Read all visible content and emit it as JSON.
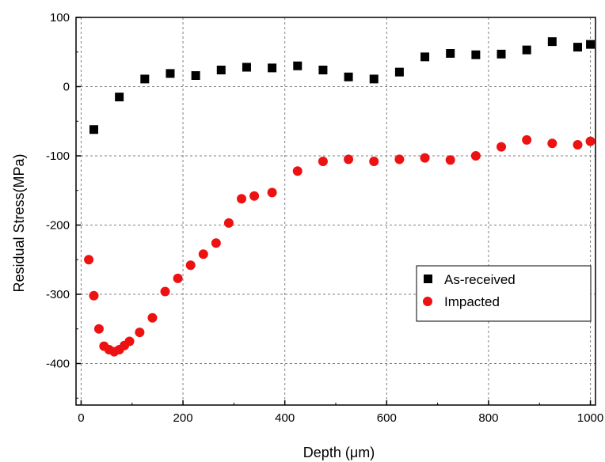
{
  "chart_data": {
    "type": "scatter",
    "xlabel": "Depth (μm)",
    "ylabel": "Residual Stress(MPa)",
    "xlim": [
      -10,
      1010
    ],
    "ylim": [
      -460,
      100
    ],
    "xticks": [
      0,
      200,
      400,
      600,
      800,
      1000
    ],
    "yticks": [
      100,
      0,
      -100,
      -200,
      -300,
      -400
    ],
    "ytick_labels": [
      "100",
      "0",
      "-100",
      "-200",
      "-300",
      "-400"
    ],
    "grid": true,
    "legend_position": "center-right",
    "series": [
      {
        "name": "As-received",
        "marker": "square",
        "color": "#000000",
        "x": [
          25,
          75,
          125,
          175,
          225,
          275,
          325,
          375,
          425,
          475,
          525,
          575,
          625,
          675,
          725,
          775,
          825,
          875,
          925,
          975,
          1000
        ],
        "y": [
          -62,
          -15,
          11,
          19,
          16,
          24,
          28,
          27,
          30,
          24,
          14,
          11,
          21,
          43,
          48,
          46,
          47,
          53,
          65,
          57,
          61
        ]
      },
      {
        "name": "Impacted",
        "marker": "circle",
        "color": "#ee1111",
        "x": [
          15,
          25,
          35,
          45,
          55,
          65,
          75,
          85,
          95,
          115,
          140,
          165,
          190,
          215,
          240,
          265,
          290,
          315,
          340,
          375,
          425,
          475,
          525,
          575,
          625,
          675,
          725,
          775,
          825,
          875,
          925,
          975,
          1000
        ],
        "y": [
          -250,
          -302,
          -350,
          -375,
          -380,
          -383,
          -380,
          -374,
          -368,
          -355,
          -334,
          -296,
          -277,
          -258,
          -242,
          -226,
          -197,
          -162,
          -158,
          -153,
          -122,
          -108,
          -105,
          -108,
          -105,
          -103,
          -106,
          -100,
          -87,
          -77,
          -82,
          -84,
          -79
        ]
      }
    ]
  }
}
